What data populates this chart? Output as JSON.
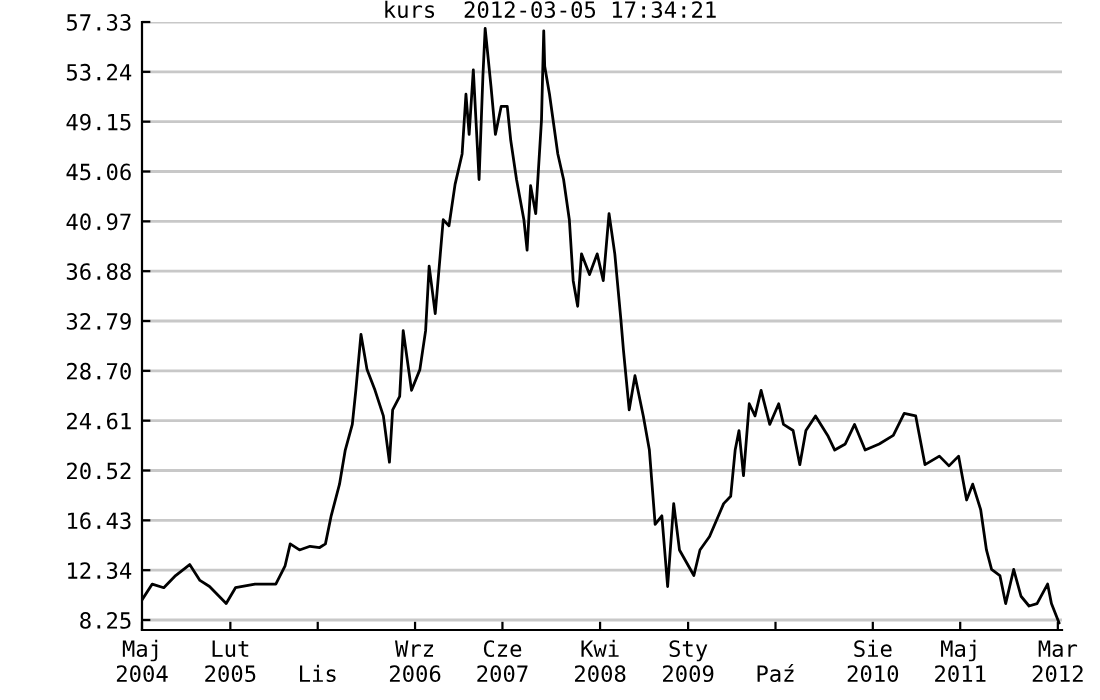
{
  "chart_data": {
    "type": "line",
    "title": "kurs  2012-03-05 17:34:21",
    "x": [
      "2004-05-01",
      "2004-06-02",
      "2004-07-08",
      "2004-08-14",
      "2004-09-27",
      "2004-10-29",
      "2004-11-28",
      "2005-01-19",
      "2005-02-17",
      "2005-04-19",
      "2005-06-23",
      "2005-07-22",
      "2005-08-07",
      "2005-09-05",
      "2005-10-08",
      "2005-11-07",
      "2005-11-25",
      "2005-12-13",
      "2006-01-08",
      "2006-01-26",
      "2006-02-17",
      "2006-02-28",
      "2006-03-16",
      "2006-04-04",
      "2006-04-29",
      "2006-05-25",
      "2006-06-13",
      "2006-06-23",
      "2006-07-15",
      "2006-07-26",
      "2006-08-21",
      "2006-09-16",
      "2006-10-04",
      "2006-10-15",
      "2006-11-03",
      "2006-11-28",
      "2006-12-16",
      "2007-01-04",
      "2007-01-26",
      "2007-02-07",
      "2007-02-17",
      "2007-03-02",
      "2007-03-20",
      "2007-04-01",
      "2007-04-08",
      "2007-04-26",
      "2007-05-10",
      "2007-05-28",
      "2007-06-16",
      "2007-06-27",
      "2007-07-15",
      "2007-08-07",
      "2007-08-17",
      "2007-08-28",
      "2007-09-13",
      "2007-10-01",
      "2007-10-08",
      "2007-10-11",
      "2007-10-26",
      "2007-11-21",
      "2007-12-09",
      "2007-12-27",
      "2008-01-08",
      "2008-01-22",
      "2008-02-03",
      "2008-02-28",
      "2008-03-23",
      "2008-04-11",
      "2008-04-29",
      "2008-05-17",
      "2008-06-05",
      "2008-06-13",
      "2008-07-01",
      "2008-07-19",
      "2008-08-14",
      "2008-09-02",
      "2008-09-20",
      "2008-10-11",
      "2008-10-29",
      "2008-11-17",
      "2008-12-05",
      "2009-01-19",
      "2009-02-07",
      "2009-03-09",
      "2009-04-22",
      "2009-05-14",
      "2009-05-28",
      "2009-06-09",
      "2009-06-23",
      "2009-07-11",
      "2009-07-29",
      "2009-08-17",
      "2009-09-13",
      "2009-10-11",
      "2009-10-26",
      "2009-11-25",
      "2009-12-16",
      "2010-01-04",
      "2010-02-03",
      "2010-03-13",
      "2010-04-04",
      "2010-05-07",
      "2010-06-05",
      "2010-07-08",
      "2010-08-21",
      "2010-10-04",
      "2010-11-07",
      "2010-12-13",
      "2011-01-11",
      "2011-02-25",
      "2011-03-27",
      "2011-04-26",
      "2011-05-21",
      "2011-06-09",
      "2011-07-04",
      "2011-07-22",
      "2011-08-07",
      "2011-09-02",
      "2011-09-20",
      "2011-10-15",
      "2011-11-07",
      "2011-12-02",
      "2011-12-27",
      "2012-01-29",
      "2012-02-10",
      "2012-03-05"
    ],
    "series": [
      {
        "color": "#000000",
        "values": [
          9.9,
          11.2,
          10.9,
          11.9,
          12.8,
          11.5,
          11.0,
          9.6,
          10.9,
          11.2,
          11.2,
          12.7,
          14.5,
          14.0,
          14.3,
          14.2,
          14.5,
          16.8,
          19.4,
          22.2,
          24.3,
          27.1,
          31.7,
          28.8,
          27.1,
          25.0,
          21.2,
          25.5,
          26.6,
          32.0,
          27.1,
          28.8,
          32.0,
          37.3,
          33.4,
          41.1,
          40.6,
          44.0,
          46.5,
          51.4,
          48.1,
          53.4,
          44.4,
          52.9,
          56.8,
          52.1,
          48.1,
          50.4,
          50.4,
          47.6,
          44.4,
          41.1,
          38.6,
          43.9,
          41.6,
          49.3,
          56.6,
          53.7,
          51.4,
          46.5,
          44.4,
          41.1,
          36.1,
          34.0,
          38.3,
          36.6,
          38.3,
          36.1,
          41.6,
          38.3,
          32.9,
          30.4,
          25.5,
          28.3,
          25.0,
          22.2,
          16.1,
          16.8,
          11.0,
          17.8,
          14.0,
          11.9,
          14.0,
          15.1,
          17.8,
          18.4,
          22.2,
          23.8,
          20.1,
          26.0,
          25.0,
          27.1,
          24.3,
          26.0,
          24.3,
          23.8,
          21.0,
          23.8,
          25.0,
          23.4,
          22.2,
          22.7,
          24.3,
          22.2,
          22.7,
          23.4,
          25.2,
          25.0,
          21.0,
          21.7,
          20.9,
          21.7,
          18.1,
          19.4,
          17.3,
          14.0,
          12.4,
          11.9,
          9.6,
          12.4,
          10.2,
          9.4,
          9.6,
          11.2,
          9.6,
          8.0
        ]
      }
    ],
    "xlim": [
      "2004-05-01",
      "2012-03-14"
    ],
    "ylim": [
      7.43,
      57.33
    ],
    "xticks": [
      {
        "value": "2004-05-01",
        "label": "Maj\n2004"
      },
      {
        "value": "2005-02-01",
        "label": "Lut\n2005"
      },
      {
        "value": "2005-11-01",
        "label": "\nLis"
      },
      {
        "value": "2006-09-01",
        "label": "Wrz\n2006"
      },
      {
        "value": "2007-06-01",
        "label": "Cze\n2007"
      },
      {
        "value": "2008-04-01",
        "label": "Kwi\n2008"
      },
      {
        "value": "2009-01-01",
        "label": "Sty\n2009"
      },
      {
        "value": "2009-10-01",
        "label": "\nPaź"
      },
      {
        "value": "2010-08-01",
        "label": "Sie\n2010"
      },
      {
        "value": "2011-05-01",
        "label": "Maj\n2011"
      },
      {
        "value": "2012-03-01",
        "label": "Mar\n2012"
      }
    ],
    "yticks": [
      8.25,
      12.34,
      16.43,
      20.52,
      24.61,
      {
        "value": 28.7,
        "label": "28.70"
      },
      32.79,
      36.88,
      40.97,
      45.06,
      49.15,
      53.24,
      57.33
    ],
    "grid": "y",
    "legend": false,
    "marker": "none",
    "line_style": "solid"
  }
}
